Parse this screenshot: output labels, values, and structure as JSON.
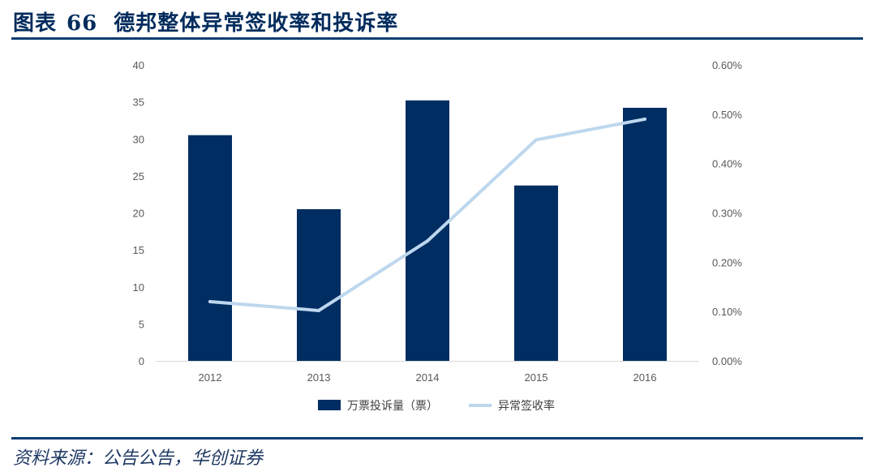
{
  "header": {
    "figure_label": "图表",
    "figure_number": "66",
    "title": "德邦整体异常签收率和投诉率"
  },
  "footer": {
    "source": "资料来源：公告公告，华创证券"
  },
  "colors": {
    "bar": "#002d62",
    "line": "#bdd7ee",
    "rule": "#0e3e72",
    "axis": "#d9d9d9"
  },
  "chart_data": {
    "type": "bar+line",
    "categories": [
      "2012",
      "2013",
      "2014",
      "2015",
      "2016"
    ],
    "series": [
      {
        "name": "万票投诉量（票）",
        "type": "bar",
        "axis": "left",
        "values": [
          30.5,
          20.5,
          35.2,
          23.7,
          34.2
        ]
      },
      {
        "name": "异常签收率",
        "type": "line",
        "axis": "right",
        "values": [
          0.0012,
          0.00102,
          0.00243,
          0.00448,
          0.0049
        ]
      }
    ],
    "y_left": {
      "min": 0,
      "max": 40,
      "step": 5,
      "ticks": [
        "0",
        "5",
        "10",
        "15",
        "20",
        "25",
        "30",
        "35",
        "40"
      ]
    },
    "y_right": {
      "min": 0,
      "max": 0.006,
      "step": 0.001,
      "ticks": [
        "0.00%",
        "0.10%",
        "0.20%",
        "0.30%",
        "0.40%",
        "0.50%",
        "0.60%"
      ]
    },
    "legend_position": "bottom",
    "grid": false
  }
}
